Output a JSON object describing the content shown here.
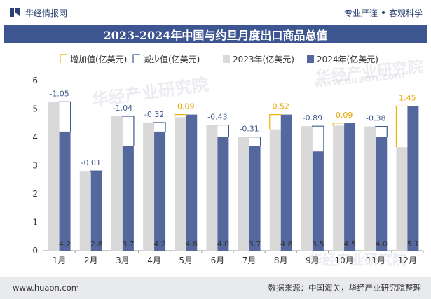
{
  "header": {
    "brand_name": "华经情报网",
    "tagline_left": "专业严谨",
    "tagline_right": "客观科学"
  },
  "chart_data": {
    "type": "bar",
    "title": "2023-2024年中国与约旦月度出口商品总值",
    "categories": [
      "1月",
      "2月",
      "3月",
      "4月",
      "5月",
      "6月",
      "7月",
      "8月",
      "9月",
      "10月",
      "11月",
      "12月"
    ],
    "series": [
      {
        "name": "2023年(亿美元)",
        "values": [
          5.25,
          2.81,
          4.74,
          4.52,
          4.71,
          4.43,
          4.01,
          4.28,
          4.39,
          4.41,
          4.38,
          3.65
        ]
      },
      {
        "name": "2024年(亿美元)",
        "values": [
          4.2,
          2.8,
          3.7,
          4.2,
          4.8,
          4.0,
          3.7,
          4.8,
          3.5,
          4.5,
          4.0,
          5.1
        ]
      }
    ],
    "value_labels": [
      "4.2",
      "2.8",
      "3.7",
      "4.2",
      "4.8",
      "4.0",
      "3.7",
      "4.8",
      "3.5",
      "4.5",
      "4.0",
      "5.1"
    ],
    "changes": [
      -1.05,
      -0.01,
      -1.04,
      -0.32,
      0.09,
      -0.43,
      -0.31,
      0.52,
      -0.89,
      0.09,
      -0.38,
      1.45
    ],
    "change_labels": [
      "-1.05",
      "-0.01",
      "-1.04",
      "-0.32",
      "0.09",
      "-0.43",
      "-0.31",
      "0.52",
      "-0.89",
      "0.09",
      "-0.38",
      "1.45"
    ],
    "legend": [
      "增加值(亿美元)",
      "减少值(亿美元)",
      "2023年(亿美元)",
      "2024年(亿美元)"
    ],
    "y_ticks": [
      "0",
      "1",
      "2",
      "3",
      "4",
      "5",
      "6"
    ],
    "ylim": [
      0,
      6
    ],
    "colors": {
      "bar2023": "#d9d9d9",
      "bar2024": "#55689e",
      "increase": "#f0b400",
      "decrease": "#3f5b8c",
      "increase_text": "#e8a400",
      "decrease_text": "#3f5b8c"
    }
  },
  "watermarks": [
    "华经产业研究院",
    "华经产业研究院",
    "www.huaon.com",
    "华经产业研究院"
  ],
  "footer": {
    "website": "www.huaon.com",
    "source": "数据来源：中国海关，华经产业研究院整理"
  }
}
